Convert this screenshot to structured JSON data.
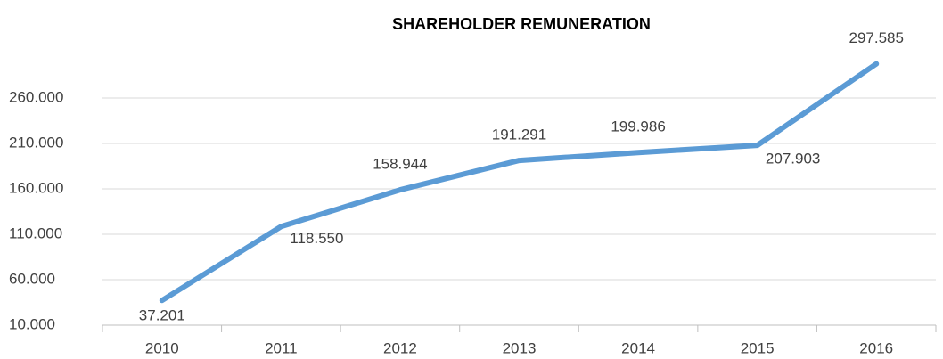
{
  "chart_data": {
    "type": "line",
    "title": "SHAREHOLDER REMUNERATION",
    "categories": [
      "2010",
      "2011",
      "2012",
      "2013",
      "2014",
      "2015",
      "2016"
    ],
    "series": [
      {
        "name": "Shareholder remuneration",
        "color": "#5b9bd5",
        "values": [
          37201,
          118550,
          158944,
          191291,
          199986,
          207903,
          297585
        ],
        "value_labels": [
          "37.201",
          "118.550",
          "158.944",
          "191.291",
          "199.986",
          "207.903",
          "297.585"
        ]
      }
    ],
    "ylim": [
      10000,
      310000
    ],
    "yticks": [
      {
        "value": 10000,
        "label": "10.000"
      },
      {
        "value": 60000,
        "label": "60.000"
      },
      {
        "value": 110000,
        "label": "110.000"
      },
      {
        "value": 160000,
        "label": "160.000"
      },
      {
        "value": 210000,
        "label": "210.000"
      },
      {
        "value": 260000,
        "label": "260.000"
      }
    ],
    "grid": true
  }
}
